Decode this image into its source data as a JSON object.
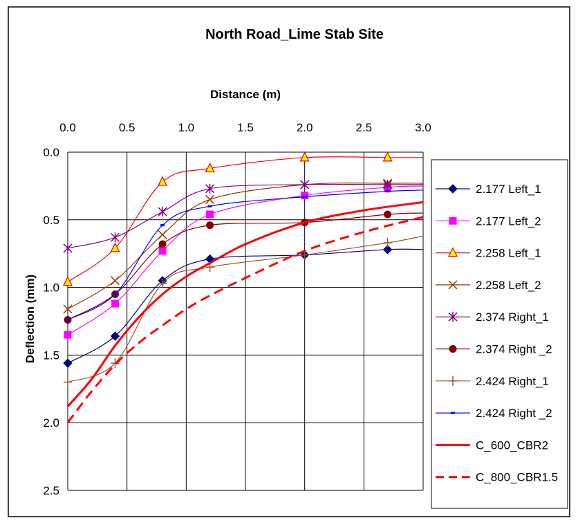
{
  "chart_data": {
    "type": "line",
    "title": "North Road_Lime Stab Site",
    "xlabel": "Distance (m)",
    "ylabel": "Deflection (mm)",
    "xlim": [
      0,
      3.0
    ],
    "ylim": [
      0,
      2.5
    ],
    "y_inverted": true,
    "x_axis_position": "top",
    "x_ticks": [
      "0.0",
      "0.5",
      "1.0",
      "1.5",
      "2.0",
      "2.5",
      "3.0"
    ],
    "y_ticks": [
      "0.0",
      "0.5",
      "1.0",
      "1.5",
      "2.0",
      "2.5"
    ],
    "grid": true,
    "legend_position": "right",
    "series": [
      {
        "name": "2.177 Left_1",
        "color": "#000080",
        "marker": "diamond",
        "dash": false,
        "width": 1.2,
        "x": [
          0,
          0.4,
          0.8,
          1.2,
          2.0,
          2.7,
          3.0
        ],
        "y": [
          1.56,
          1.36,
          0.95,
          0.79,
          0.76,
          0.72,
          0.72
        ]
      },
      {
        "name": "2.177 Left_2",
        "color": "#FF00FF",
        "marker": "square",
        "dash": false,
        "width": 1.2,
        "x": [
          0,
          0.4,
          0.8,
          1.2,
          2.0,
          2.7,
          3.0
        ],
        "y": [
          1.35,
          1.12,
          0.73,
          0.46,
          0.32,
          0.26,
          0.25
        ]
      },
      {
        "name": "2.258 Left_1",
        "color": "#FF0000",
        "marker": "triangle",
        "dash": false,
        "width": 1.2,
        "x": [
          0,
          0.4,
          0.8,
          1.2,
          2.0,
          2.7,
          3.0
        ],
        "y": [
          0.96,
          0.71,
          0.22,
          0.12,
          0.04,
          0.04,
          0.04
        ]
      },
      {
        "name": "2.258 Left_2",
        "color": "#993300",
        "marker": "x",
        "dash": false,
        "width": 1.2,
        "x": [
          0,
          0.4,
          0.8,
          1.2,
          2.0,
          2.7,
          3.0
        ],
        "y": [
          1.16,
          0.95,
          0.61,
          0.35,
          0.24,
          0.23,
          0.23
        ]
      },
      {
        "name": "2.374 Right_1",
        "color": "#800080",
        "marker": "star",
        "dash": false,
        "width": 1.2,
        "x": [
          0,
          0.4,
          0.8,
          1.2,
          2.0,
          2.7,
          3.0
        ],
        "y": [
          0.71,
          0.63,
          0.44,
          0.27,
          0.24,
          0.24,
          0.24
        ]
      },
      {
        "name": "2.374 Right _2",
        "color": "#800000",
        "marker": "circle",
        "dash": false,
        "width": 1.2,
        "x": [
          0,
          0.4,
          0.8,
          1.2,
          2.0,
          2.7,
          3.0
        ],
        "y": [
          1.24,
          1.05,
          0.68,
          0.54,
          0.52,
          0.46,
          0.45
        ]
      },
      {
        "name": "2.424 Right_1",
        "color": "#A0522D",
        "marker": "plus",
        "dash": false,
        "width": 1.2,
        "x": [
          0,
          0.4,
          0.8,
          1.2,
          2.0,
          2.7,
          3.0
        ],
        "y": [
          1.7,
          1.56,
          0.97,
          0.85,
          0.76,
          0.67,
          0.62
        ]
      },
      {
        "name": "2.424 Right _2",
        "color": "#0000FF",
        "marker": "dash",
        "dash": false,
        "width": 1.2,
        "x": [
          0,
          0.4,
          0.8,
          1.2,
          2.0,
          2.7,
          3.0
        ],
        "y": [
          1.24,
          1.05,
          0.54,
          0.4,
          0.33,
          0.29,
          0.28
        ]
      },
      {
        "name": "C_600_CBR2",
        "color": "#FF0000",
        "marker": "none",
        "dash": false,
        "width": 3,
        "x": [
          0,
          0.2,
          0.4,
          0.6,
          0.8,
          1.0,
          1.2,
          1.5,
          2.0,
          2.5,
          3.0
        ],
        "y": [
          1.88,
          1.68,
          1.43,
          1.22,
          1.05,
          0.92,
          0.82,
          0.68,
          0.52,
          0.43,
          0.37
        ]
      },
      {
        "name": "C_800_CBR1.5",
        "color": "#FF0000",
        "marker": "none",
        "dash": true,
        "width": 3,
        "x": [
          0,
          0.2,
          0.4,
          0.6,
          0.8,
          1.0,
          1.2,
          1.5,
          2.0,
          2.5,
          3.0
        ],
        "y": [
          2.0,
          1.77,
          1.57,
          1.41,
          1.28,
          1.16,
          1.06,
          0.93,
          0.73,
          0.59,
          0.48
        ]
      }
    ]
  }
}
